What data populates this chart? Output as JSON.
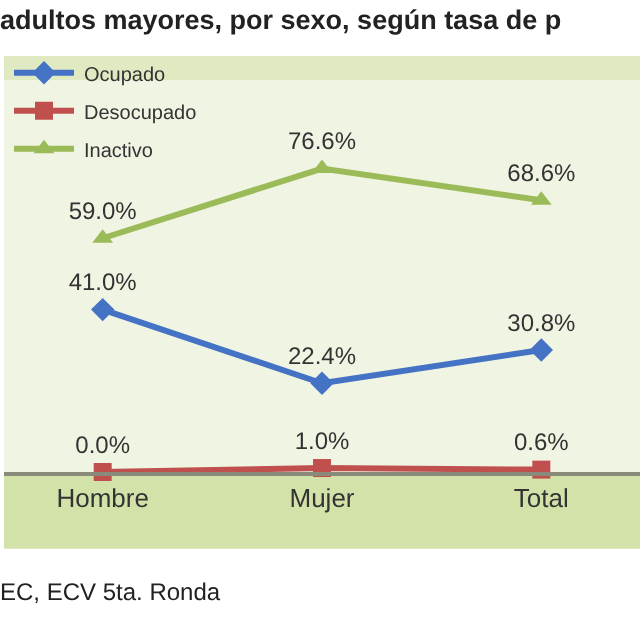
{
  "chart_data": {
    "type": "line",
    "title": "adultos mayores, por sexo, según tasa de p",
    "categories": [
      "Hombre",
      "Mujer",
      "Total"
    ],
    "series": [
      {
        "name": "Ocupado",
        "color": "#4472c4",
        "marker": "diamond",
        "values": [
          41.0,
          22.4,
          30.8
        ],
        "value_labels": [
          "41.0%",
          "22.4%",
          "30.8%"
        ]
      },
      {
        "name": "Desocupado",
        "color": "#c0504d",
        "marker": "square",
        "values": [
          0.0,
          1.0,
          0.6
        ],
        "value_labels": [
          "0.0%",
          "1.0%",
          "0.6%"
        ]
      },
      {
        "name": "Inactivo",
        "color": "#9bbb59",
        "marker": "triangle",
        "values": [
          59.0,
          76.6,
          68.6
        ],
        "value_labels": [
          "59.0%",
          "76.6%",
          "68.6%"
        ]
      }
    ],
    "legend": "top left",
    "grid": false,
    "annotations": [
      "EC, ECV 5ta. Ronda"
    ]
  }
}
